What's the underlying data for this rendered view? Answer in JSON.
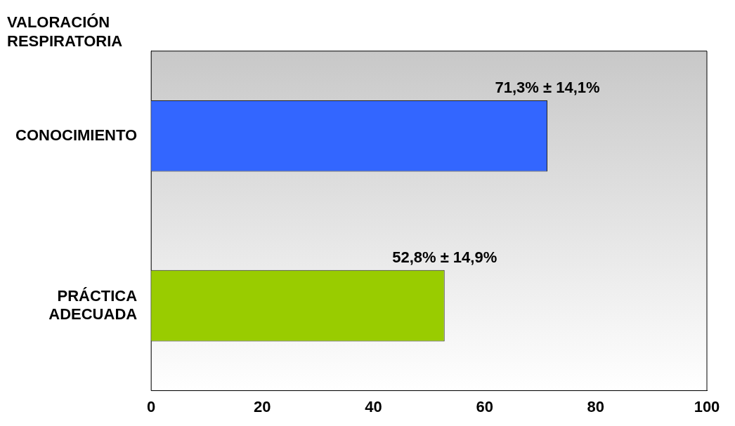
{
  "chart_data": {
    "type": "bar",
    "orientation": "horizontal",
    "title": "VALORACIÓN RESPIRATORIA",
    "categories": [
      "CONOCIMIENTO",
      "PRÁCTICA ADECUADA"
    ],
    "series": [
      {
        "colors": [
          "#3366ff",
          "#99cc00"
        ],
        "values": [
          71.3,
          52.8
        ],
        "value_labels": [
          "71,3% ± 14,1%",
          "52,8% ± 14,9%"
        ]
      }
    ],
    "xlim": [
      0,
      100
    ],
    "xticks": [
      0,
      20,
      40,
      60,
      80,
      100
    ],
    "grid": false,
    "legend": false
  }
}
